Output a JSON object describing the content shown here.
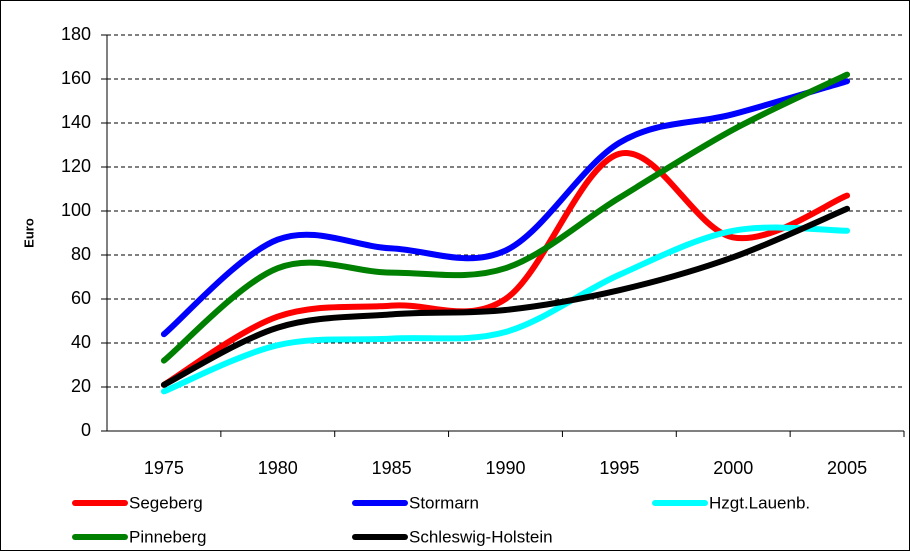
{
  "chart_data": {
    "type": "line",
    "y_label": "Euro",
    "categories": [
      "1975",
      "1980",
      "1985",
      "1990",
      "1995",
      "2000",
      "2005"
    ],
    "series": [
      {
        "name": "Segeberg",
        "color": "#ff0000",
        "values": [
          21,
          52,
          57,
          60,
          126,
          88,
          107
        ]
      },
      {
        "name": "Stormarn",
        "color": "#0000ff",
        "values": [
          44,
          87,
          83,
          82,
          131,
          144,
          159
        ]
      },
      {
        "name": "Hzgt.Lauenb.",
        "color": "#00ffff",
        "values": [
          18,
          39,
          42,
          45,
          71,
          91,
          91
        ]
      },
      {
        "name": "Pinneberg",
        "color": "#008000",
        "values": [
          32,
          74,
          72,
          74,
          106,
          137,
          162
        ]
      },
      {
        "name": "Schleswig-Holstein",
        "color": "#000000",
        "values": [
          21,
          47,
          53,
          55,
          64,
          79,
          101
        ]
      }
    ],
    "ylim": [
      0,
      180
    ],
    "yticks": [
      0,
      20,
      40,
      60,
      80,
      100,
      120,
      140,
      160,
      180
    ],
    "grid": true,
    "smooth": true,
    "legend": "bottom"
  }
}
